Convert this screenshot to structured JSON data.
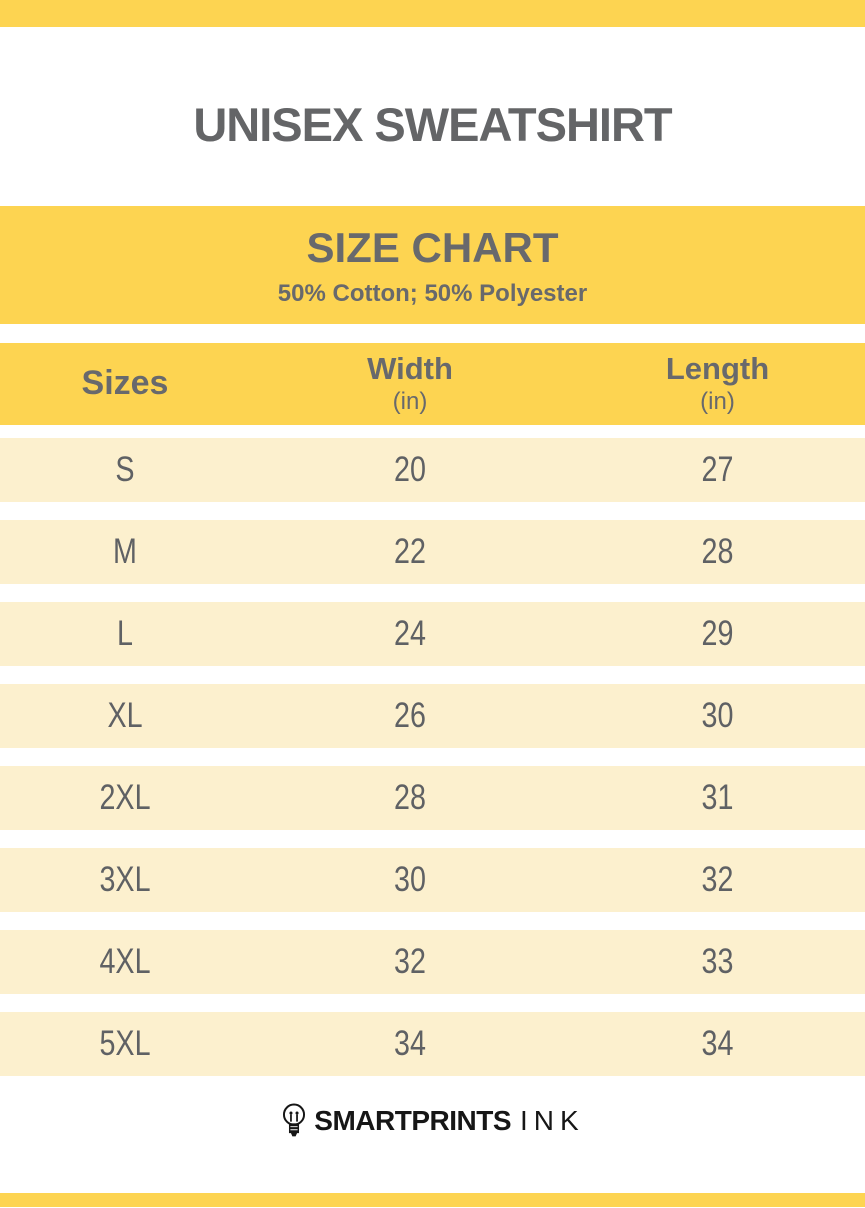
{
  "colors": {
    "background": "#FFFFFF",
    "yellow": "#FDD451",
    "cream": "#FCF0CE",
    "title_gray": "#646567",
    "header_gray": "#68696C",
    "cell_gray": "#5F6164",
    "logo_black": "#161616"
  },
  "header": {
    "title": "UNISEX SWEATSHIRT"
  },
  "banner": {
    "title": "SIZE CHART",
    "subtitle": "50% Cotton; 50% Polyester"
  },
  "table": {
    "columns": [
      {
        "label": "Sizes",
        "unit": ""
      },
      {
        "label": "Width",
        "unit": "(in)"
      },
      {
        "label": "Length",
        "unit": "(in)"
      }
    ],
    "rows": [
      {
        "size": "S",
        "width": "20",
        "length": "27"
      },
      {
        "size": "M",
        "width": "22",
        "length": "28"
      },
      {
        "size": "L",
        "width": "24",
        "length": "29"
      },
      {
        "size": "XL",
        "width": "26",
        "length": "30"
      },
      {
        "size": "2XL",
        "width": "28",
        "length": "31"
      },
      {
        "size": "3XL",
        "width": "30",
        "length": "32"
      },
      {
        "size": "4XL",
        "width": "32",
        "length": "33"
      },
      {
        "size": "5XL",
        "width": "34",
        "length": "34"
      }
    ]
  },
  "footer": {
    "brand_bold": "SMARTPRINTS",
    "brand_light": "INK",
    "icon": "lightbulb-icon"
  },
  "chart_data": {
    "type": "table",
    "title": "UNISEX SWEATSHIRT",
    "subtitle": "SIZE CHART — 50% Cotton; 50% Polyester",
    "columns": [
      "Sizes",
      "Width (in)",
      "Length (in)"
    ],
    "rows": [
      [
        "S",
        20,
        27
      ],
      [
        "M",
        22,
        28
      ],
      [
        "L",
        24,
        29
      ],
      [
        "XL",
        26,
        30
      ],
      [
        "2XL",
        28,
        31
      ],
      [
        "3XL",
        30,
        32
      ],
      [
        "4XL",
        32,
        33
      ],
      [
        "5XL",
        34,
        34
      ]
    ]
  }
}
